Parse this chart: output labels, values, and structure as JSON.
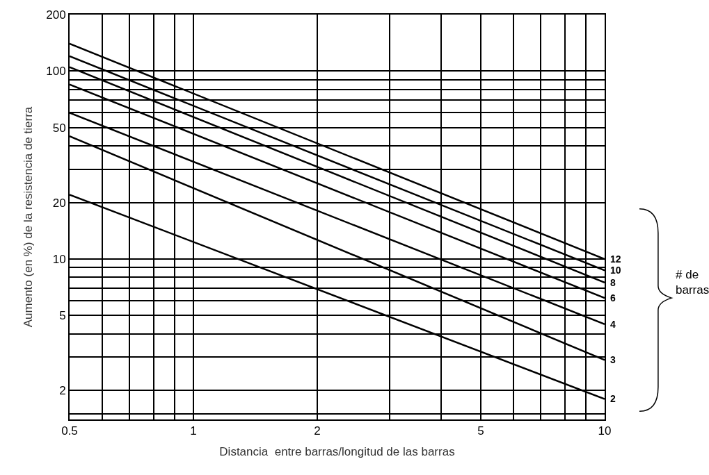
{
  "chart_data": {
    "type": "line",
    "xlabel": "Distancia  entre barras/longitud de las barras",
    "ylabel": "Aumento (en %) de la resistencia de tierra",
    "x": [
      0.5,
      10
    ],
    "series": [
      {
        "name": "12",
        "color": "#000000",
        "values": [
          140,
          10
        ]
      },
      {
        "name": "10",
        "color": "#000000",
        "values": [
          120,
          8.7
        ]
      },
      {
        "name": "8",
        "color": "#000000",
        "values": [
          105,
          7.5
        ]
      },
      {
        "name": "6",
        "color": "#000000",
        "values": [
          85,
          6.2
        ]
      },
      {
        "name": "4",
        "color": "#000000",
        "values": [
          60,
          4.5
        ]
      },
      {
        "name": "3",
        "color": "#000000",
        "values": [
          45,
          2.9
        ]
      },
      {
        "name": "2",
        "color": "#000000",
        "values": [
          22,
          1.8
        ]
      }
    ],
    "log": "xy",
    "xlim": [
      0.5,
      10
    ],
    "ylim": [
      1.4,
      200
    ],
    "xticks": [
      0.5,
      {
        "value": 0.6,
        "label": null
      },
      {
        "value": 0.7,
        "label": null
      },
      {
        "value": 0.8,
        "label": null
      },
      {
        "value": 0.9,
        "label": null
      },
      1,
      2,
      {
        "value": 3,
        "label": null
      },
      {
        "value": 4,
        "label": null
      },
      5,
      {
        "value": 6,
        "label": null
      },
      {
        "value": 7,
        "label": null
      },
      {
        "value": 8,
        "label": null
      },
      {
        "value": 9,
        "label": null
      },
      10
    ],
    "yticks": [
      {
        "value": 1.5,
        "label": null
      },
      2,
      {
        "value": 3,
        "label": null
      },
      {
        "value": 4,
        "label": null
      },
      5,
      {
        "value": 6,
        "label": null
      },
      {
        "value": 7,
        "label": null
      },
      {
        "value": 8,
        "label": null
      },
      {
        "value": 9,
        "label": null
      },
      10,
      20,
      {
        "value": 30,
        "label": null
      },
      {
        "value": 40,
        "label": null
      },
      50,
      {
        "value": 60,
        "label": null
      },
      {
        "value": 70,
        "label": null
      },
      {
        "value": 80,
        "label": null
      },
      {
        "value": 90,
        "label": null
      },
      100,
      200
    ],
    "grid": true,
    "legend": false,
    "marker": "none",
    "line_style": "solid",
    "annotations": [
      "# de barras"
    ]
  }
}
